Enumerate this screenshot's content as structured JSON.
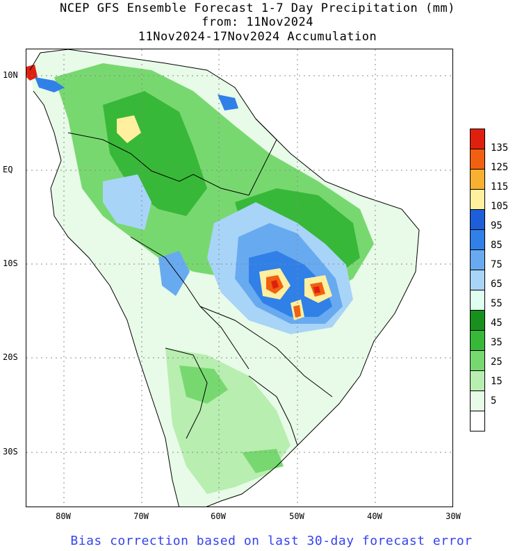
{
  "title": {
    "line1": "NCEP GFS Ensemble Forecast 1-7 Day Precipitation (mm)",
    "line2": "from: 11Nov2024",
    "line3": "11Nov2024-17Nov2024 Accumulation"
  },
  "lat_labels": [
    "10N",
    "EQ",
    "10S",
    "20S",
    "30S"
  ],
  "lon_labels": [
    "80W",
    "70W",
    "60W",
    "50W",
    "40W",
    "30W"
  ],
  "colorbar": {
    "labels": [
      "135",
      "125",
      "115",
      "105",
      "95",
      "85",
      "75",
      "65",
      "55",
      "45",
      "35",
      "25",
      "15",
      "5"
    ],
    "colors": [
      "#e0200f",
      "#f06010",
      "#f8b030",
      "#fff0a0",
      "#1e5ed8",
      "#3080e8",
      "#68aaf0",
      "#a8d4f8",
      "#e0fff0",
      "#18901e",
      "#38b838",
      "#78d870",
      "#b8eeb0",
      "#e8fae8",
      "#ffffff"
    ]
  },
  "map": {
    "ocean_color": "#ffffff",
    "green_shades": [
      "#e8fae8",
      "#b8eeb0",
      "#78d870",
      "#38b838",
      "#18901e"
    ],
    "blue_shades": [
      "#e0fff0",
      "#a8d4f8",
      "#68aaf0",
      "#3080e8",
      "#1e5ed8"
    ],
    "warm_shades": [
      "#fff0a0",
      "#f8b030",
      "#f06010",
      "#e0200f"
    ]
  },
  "footer": "Bias correction based on last 30-day forecast error"
}
